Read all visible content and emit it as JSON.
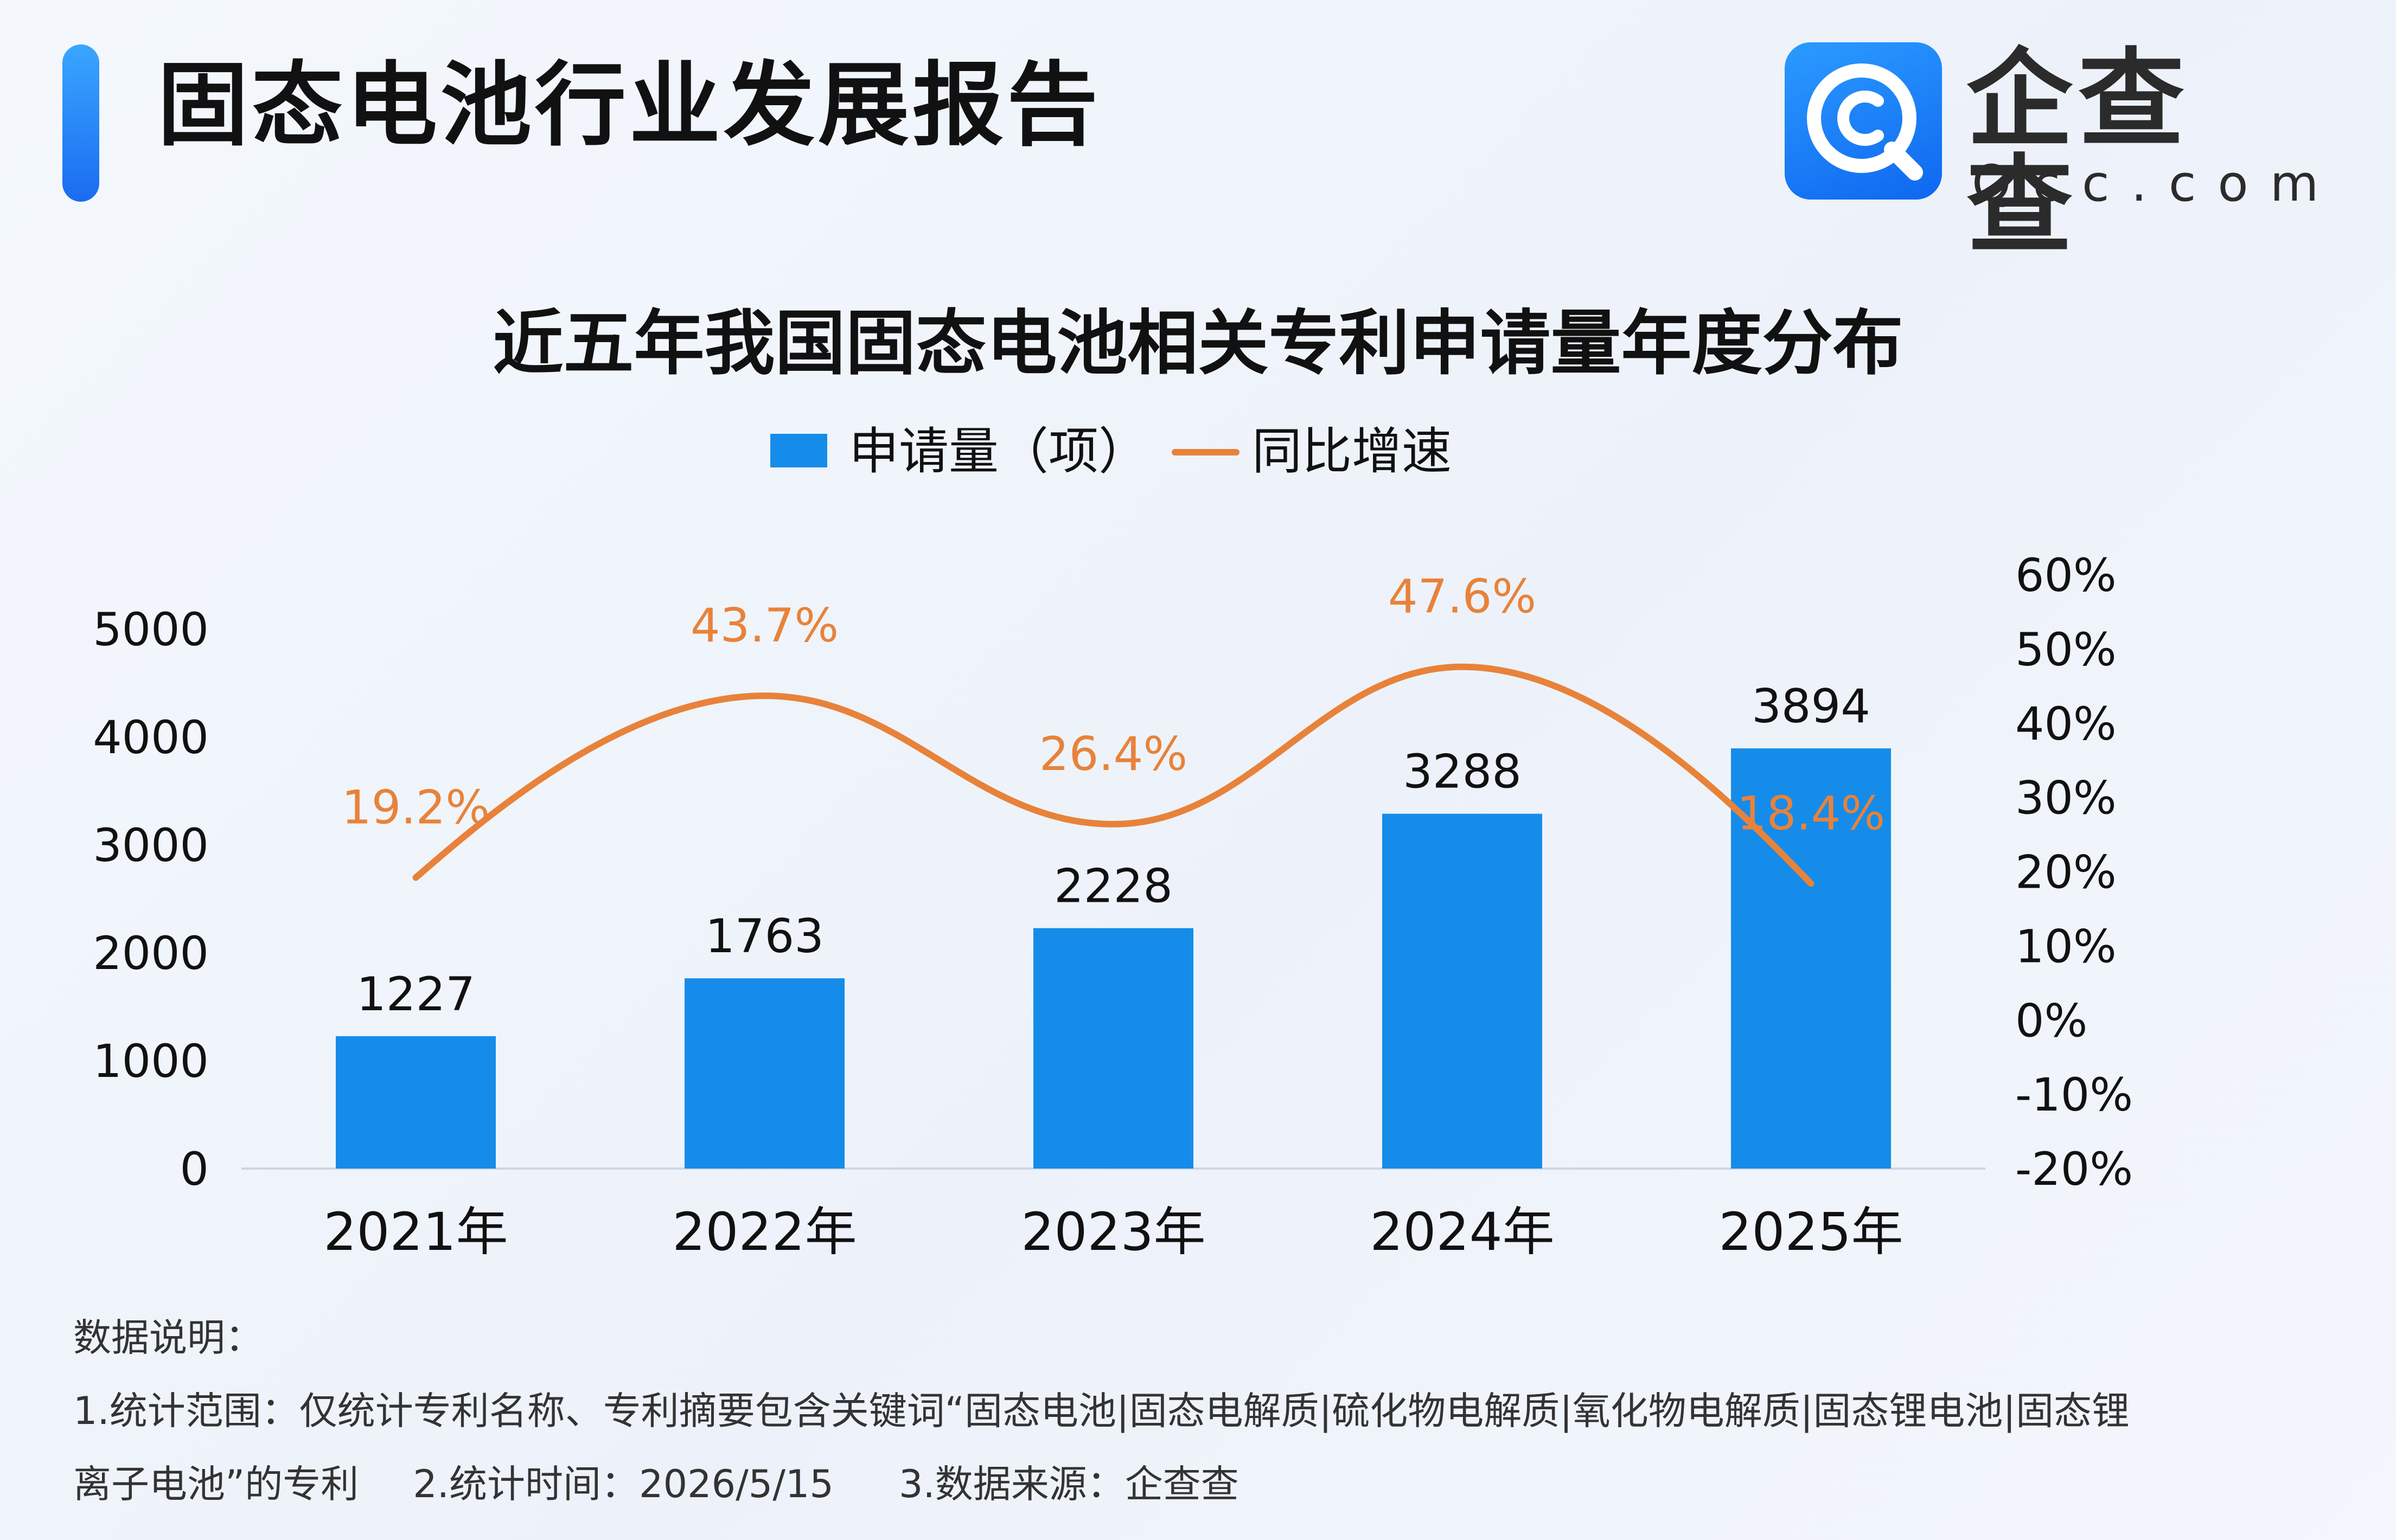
{
  "header": {
    "title": "固态电池行业发展报告"
  },
  "logo": {
    "name": "企查查",
    "domain": "Qcc.com",
    "icon": "qcc-logo-icon"
  },
  "chart_data": {
    "type": "bar",
    "title": "近五年我国固态电池相关专利申请量年度分布",
    "categories": [
      "2021年",
      "2022年",
      "2023年",
      "2024年",
      "2025年"
    ],
    "series": [
      {
        "name": "申请量（项）",
        "type": "bar",
        "axis": "left",
        "values": [
          1227,
          1763,
          2228,
          3288,
          3894
        ],
        "labels": [
          "1227",
          "1763",
          "2228",
          "3288",
          "3894"
        ],
        "color": "#158cea"
      },
      {
        "name": "同比增速",
        "type": "line",
        "axis": "right",
        "values": [
          19.2,
          43.7,
          26.4,
          47.6,
          18.4
        ],
        "labels": [
          "19.2%",
          "43.7%",
          "26.4%",
          "47.6%",
          "18.4%"
        ],
        "color": "#e8823a"
      }
    ],
    "y_left": {
      "range": [
        0,
        5000
      ],
      "ticks": [
        "0",
        "1000",
        "2000",
        "3000",
        "4000",
        "5000"
      ]
    },
    "y_right": {
      "range": [
        -20,
        60
      ],
      "ticks": [
        "-20%",
        "-10%",
        "0%",
        "10%",
        "20%",
        "30%",
        "40%",
        "50%",
        "60%"
      ]
    },
    "legend_position": "top-center",
    "grid": false
  },
  "notes": {
    "heading": "数据说明：",
    "line1": "1.统计范围：仅统计专利名称、专利摘要包含关键词“固态电池|固态电解质|硫化物电解质|氧化物电解质|固态锂电池|固态锂",
    "line2_part1": "离子电池”的专利",
    "line2_part2": "2.统计时间：2026/5/15",
    "line2_part3": "3.数据来源：企查查"
  },
  "colors": {
    "accent": "#1a6cf0",
    "bar": "#158cea",
    "line": "#e8823a"
  }
}
